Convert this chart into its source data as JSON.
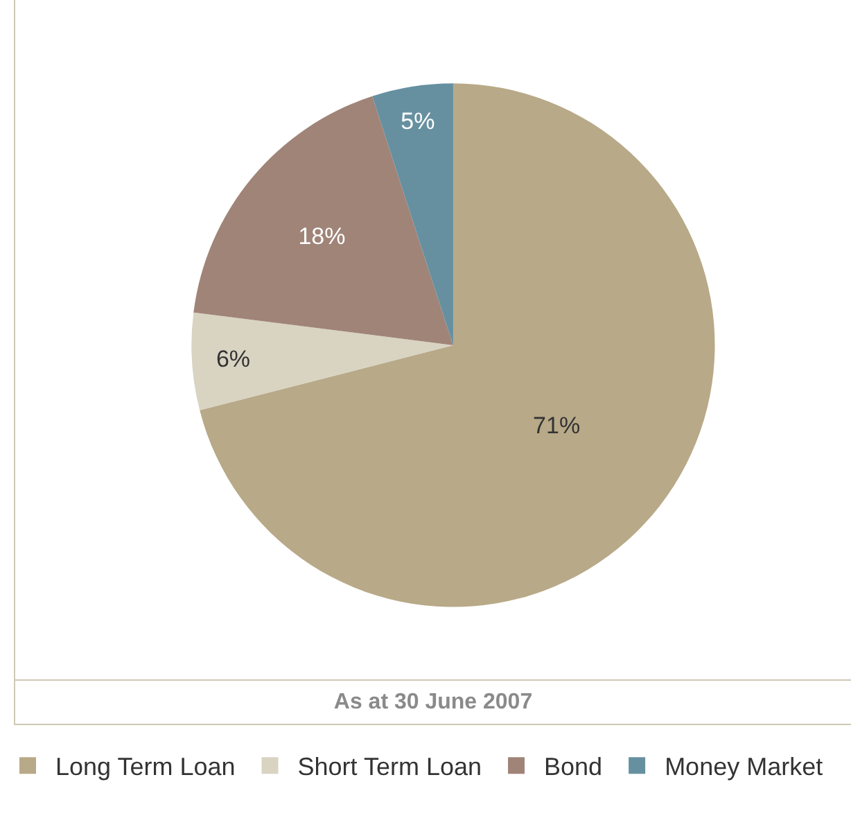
{
  "chart_data": {
    "type": "pie",
    "title": "As at 30 June 2007",
    "categories": [
      "Long Term Loan",
      "Short Term Loan",
      "Bond",
      "Money Market"
    ],
    "values": [
      71,
      6,
      18,
      5
    ],
    "colors": [
      "#b8a988",
      "#d9d3c2",
      "#a08478",
      "#6690a0"
    ],
    "value_labels": [
      "71%",
      "6%",
      "18%",
      "5%"
    ],
    "legend": "bottom"
  }
}
